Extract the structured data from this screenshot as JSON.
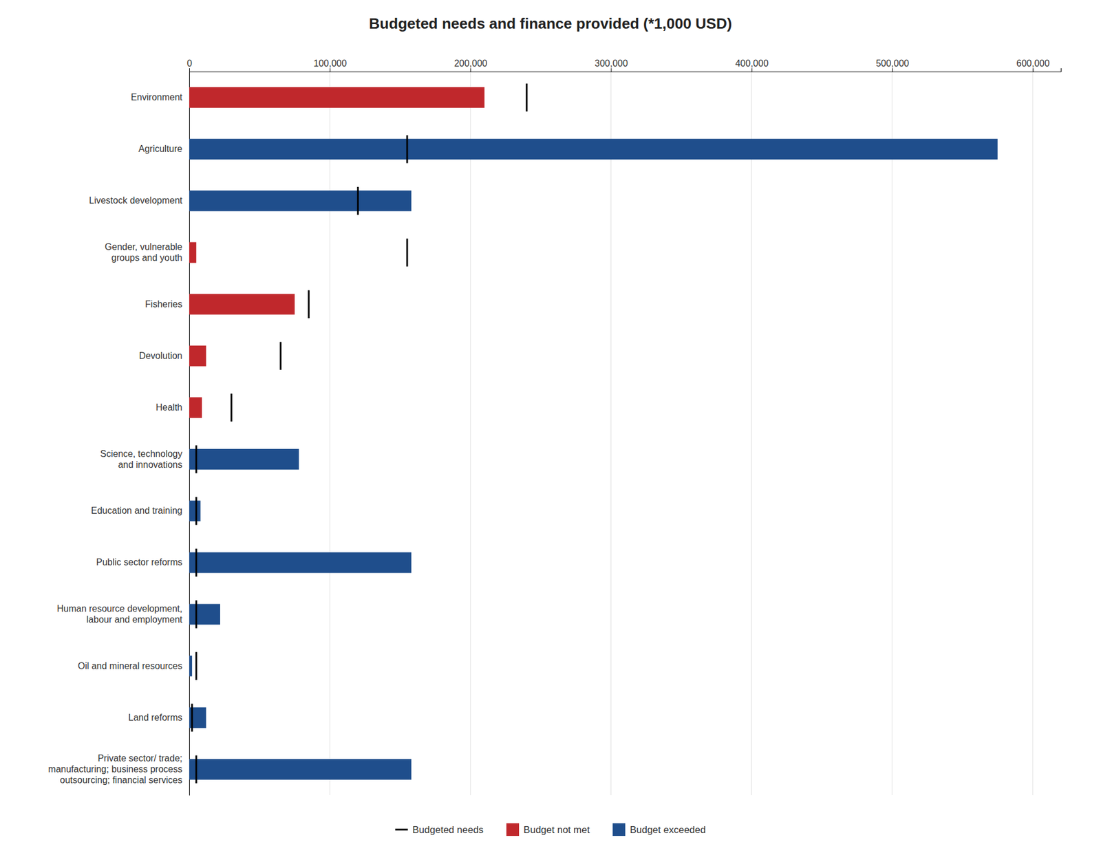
{
  "chart_data": {
    "type": "bar",
    "orientation": "horizontal",
    "title": "Budgeted needs and finance provided (*1,000 USD)",
    "categories": [
      "Environment",
      "Agriculture",
      "Livestock development",
      "Gender, vulnerable\ngroups and youth",
      "Fisheries",
      "Devolution",
      "Health",
      "Science, technology\nand innovations",
      "Education and training",
      "Public sector reforms",
      "Human resource development,\nlabour and employment",
      "Oil and mineral resources",
      "Land reforms",
      "Private sector/ trade;\nmanufacturing; business process\noutsourcing; financial services"
    ],
    "series": [
      {
        "name": "Budgeted needs",
        "type": "scatter",
        "marker": "line",
        "color": "#000000",
        "values": [
          240000,
          155000,
          120000,
          155000,
          85000,
          65000,
          30000,
          5000,
          5000,
          5000,
          5000,
          5000,
          2000,
          5000
        ]
      },
      {
        "name": "Budget not met",
        "type": "bar",
        "color": "#C0282C",
        "values": [
          210000,
          null,
          null,
          5000,
          75000,
          12000,
          9000,
          null,
          null,
          null,
          null,
          null,
          null,
          null
        ]
      },
      {
        "name": "Budget exceeded",
        "type": "bar",
        "color": "#1F4E8C",
        "values": [
          null,
          575000,
          158000,
          null,
          null,
          null,
          null,
          78000,
          8000,
          158000,
          22000,
          2000,
          12000,
          158000
        ]
      }
    ],
    "xlim": [
      0,
      620000
    ],
    "xticks": [
      0,
      {
        "value": 100000,
        "label": "100,000"
      },
      {
        "value": 200000,
        "label": "200,000"
      },
      {
        "value": 300000,
        "label": "300,000"
      },
      {
        "value": 400000,
        "label": "400,000"
      },
      {
        "value": 500000,
        "label": "500,000"
      },
      {
        "value": 600000,
        "label": "600,000"
      }
    ],
    "grid": true,
    "legend": "bottom"
  }
}
